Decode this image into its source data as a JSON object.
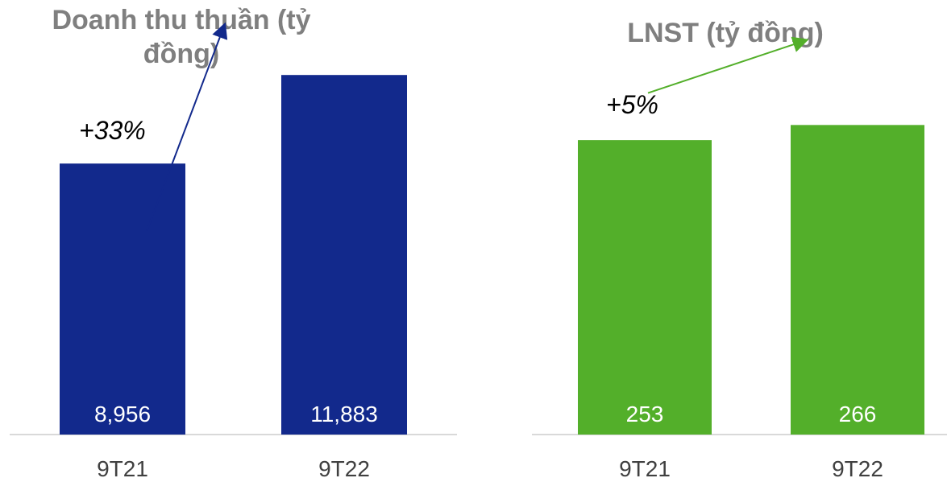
{
  "chart_data": [
    {
      "type": "bar",
      "title": "Doanh thu thuần (tỷ đồng)",
      "categories": [
        "9T21",
        "9T22"
      ],
      "values": [
        8956,
        11883
      ],
      "value_labels": [
        "8,956",
        "11,883"
      ],
      "annotation": "+33%",
      "color": "#12298c",
      "arrow_color": "#12298c",
      "ylim": [
        0,
        12500
      ],
      "grid": false,
      "legend": "none"
    },
    {
      "type": "bar",
      "title": "LNST (tỷ đồng)",
      "categories": [
        "9T21",
        "9T22"
      ],
      "values": [
        253,
        266
      ],
      "value_labels": [
        "253",
        "266"
      ],
      "annotation": "+5%",
      "color": "#53af2a",
      "arrow_color": "#53af2a",
      "ylim": [
        0,
        325
      ],
      "grid": false,
      "legend": "none"
    }
  ]
}
